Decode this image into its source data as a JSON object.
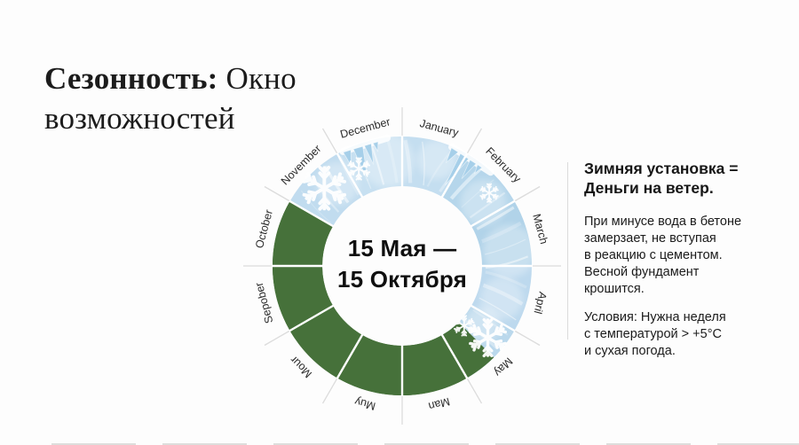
{
  "title": {
    "line1_bold": "Сезонность:",
    "line1_rest": " Окно",
    "line2": "возможностей"
  },
  "panel": {
    "heading": "Зимняя установка =\nДеньги на ветер.",
    "paragraph1": "При минусе вода в бетоне\nзамерзает, не вступая\nв реакцию с цементом.\nВесной фундамент\nкрошится.",
    "paragraph2": "Условия: Нужна неделя\nс температурой > +5°С\nи сухая погода."
  },
  "chart_data": {
    "type": "pie",
    "subtype": "annual-calendar-donut",
    "title": "",
    "center_label": {
      "line1": "15 Мая —",
      "line2": "15 Октября"
    },
    "months": [
      {
        "label": "January",
        "zone": "winter",
        "fill": "#c4def0"
      },
      {
        "label": "February",
        "zone": "winter",
        "fill": "#b5d6eb"
      },
      {
        "label": "March",
        "zone": "winter",
        "fill": "#b1d3e9"
      },
      {
        "label": "April",
        "zone": "winter",
        "fill": "#bdd9ee"
      },
      {
        "label": "May",
        "zone": "winter",
        "fill": "#bad8ec"
      },
      {
        "label": "Man",
        "zone": "summer",
        "fill": "#46713a"
      },
      {
        "label": "Muy",
        "zone": "summer",
        "fill": "#46713a"
      },
      {
        "label": "Mour",
        "zone": "summer",
        "fill": "#46713a"
      },
      {
        "label": "Sepober",
        "zone": "summer",
        "fill": "#46713a"
      },
      {
        "label": "October",
        "zone": "summer",
        "fill": "#46713a"
      },
      {
        "label": "November",
        "zone": "winter",
        "fill": "#c1dcef"
      },
      {
        "label": "December",
        "zone": "winter",
        "fill": "#c7e0f1"
      }
    ],
    "segment_deg": 30,
    "green_arc_deg": [
      135,
      300
    ],
    "winter_arc_deg": [
      300,
      495
    ],
    "colors": {
      "summer_green": "#46713a",
      "winter_blue": "#b9d8ec",
      "icicle_blue": "#a6cfe9",
      "divider": "#ffffff",
      "outer_tick": "#dcdcdc",
      "month_label": "#2a2a2a",
      "snowflake": "#ffffff"
    },
    "snowflakes": [
      {
        "month": "November",
        "angle": 315,
        "radius": 124,
        "size": 46
      },
      {
        "month": "December",
        "angle": 336,
        "radius": 120,
        "size": 24
      },
      {
        "month": "February",
        "angle": 50,
        "radius": 128,
        "size": 20
      },
      {
        "month": "May",
        "angle": 134,
        "radius": 97,
        "size": 22
      },
      {
        "month": "May",
        "angle": 130,
        "radius": 126,
        "size": 40
      }
    ],
    "icicle_clusters": [
      {
        "month": "December",
        "angle": 343
      },
      {
        "month": "February",
        "angle": 33
      }
    ],
    "geometry": {
      "outer_radius": 146,
      "inner_radius": 90,
      "label_radius": 161,
      "tick_outer_radius": 163
    }
  }
}
